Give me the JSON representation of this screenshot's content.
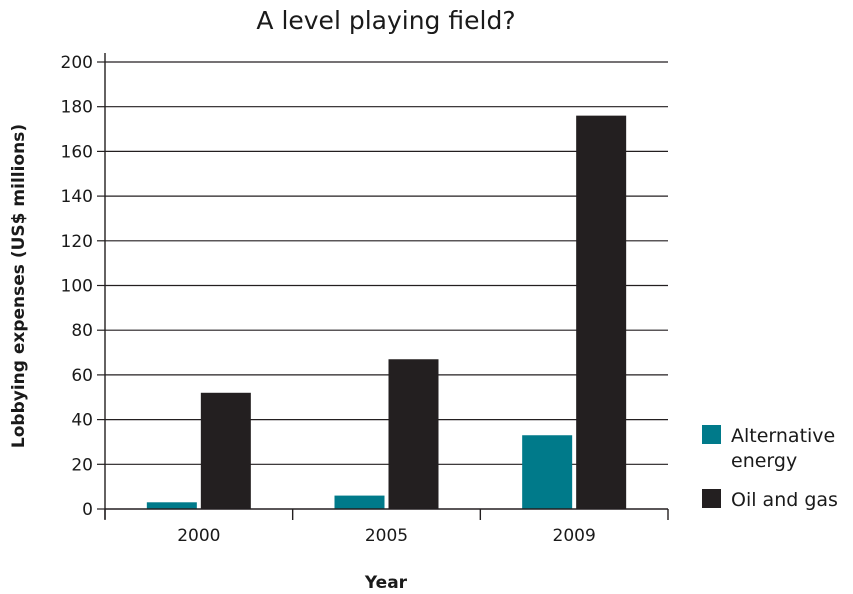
{
  "chart_data": {
    "type": "bar",
    "title": "A level playing field?",
    "xlabel": "Year",
    "ylabel": "Lobbying expenses (US$ millions)",
    "categories": [
      "2000",
      "2005",
      "2009"
    ],
    "series": [
      {
        "name": "Alternative energy",
        "name_lines": [
          "Alternative",
          "energy"
        ],
        "color": "#007a8a",
        "values": [
          3,
          6,
          33
        ]
      },
      {
        "name": "Oil and gas",
        "name_lines": [
          "Oil and gas"
        ],
        "color": "#231f20",
        "values": [
          52,
          67,
          176
        ]
      }
    ],
    "ylim": [
      0,
      200
    ],
    "yticks": [
      0,
      20,
      40,
      60,
      80,
      100,
      120,
      140,
      160,
      180,
      200
    ],
    "grid": true,
    "legend_position": "right"
  }
}
